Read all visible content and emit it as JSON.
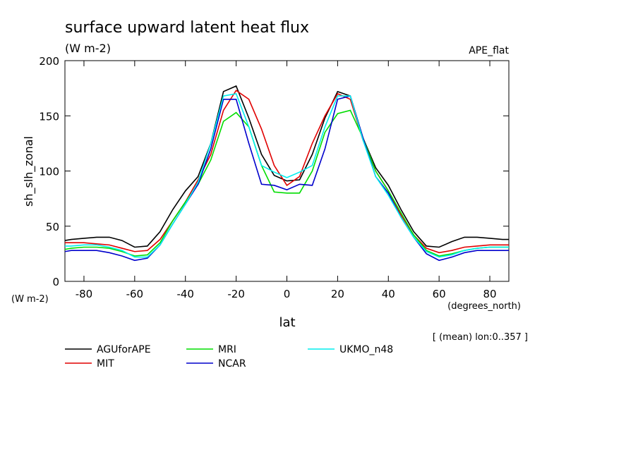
{
  "chart_data": {
    "type": "line",
    "title": "surface upward latent heat flux",
    "subtitle": "(W m-2)",
    "dataset_label": "APE_flat",
    "y_label": "sh_slh_zonal",
    "y_units": "(W m-2)",
    "x_label": "lat",
    "x_units": "(degrees_north)",
    "note": "[ (mean) lon:0..357 ]",
    "xlim": [
      -87.5,
      87.5
    ],
    "ylim": [
      0,
      200
    ],
    "xticks": [
      -80,
      -60,
      -40,
      -20,
      0,
      20,
      40,
      60,
      80
    ],
    "yticks": [
      0,
      50,
      100,
      150,
      200
    ],
    "x": [
      -87.5,
      -85,
      -80,
      -75,
      -70,
      -65,
      -60,
      -55,
      -50,
      -45,
      -40,
      -35,
      -30,
      -25,
      -20,
      -15,
      -10,
      -5,
      0,
      5,
      10,
      15,
      20,
      25,
      30,
      35,
      40,
      45,
      50,
      55,
      60,
      65,
      70,
      75,
      80,
      85,
      87.5
    ],
    "series": [
      {
        "name": "AGUforAPE",
        "color": "#000000",
        "values": [
          37,
          38,
          39,
          40,
          40,
          37,
          31,
          32,
          45,
          65,
          82,
          95,
          125,
          172,
          177,
          148,
          115,
          96,
          91,
          92,
          115,
          148,
          172,
          168,
          130,
          103,
          87,
          65,
          45,
          32,
          31,
          36,
          40,
          40,
          39,
          38,
          38
        ]
      },
      {
        "name": "MIT",
        "color": "#e00000",
        "values": [
          35,
          35,
          35,
          34,
          33,
          30,
          27,
          28,
          38,
          55,
          72,
          92,
          115,
          155,
          173,
          165,
          138,
          105,
          87,
          95,
          125,
          150,
          170,
          165,
          128,
          100,
          82,
          60,
          42,
          30,
          26,
          28,
          31,
          32,
          33,
          33,
          33
        ]
      },
      {
        "name": "MRI",
        "color": "#00dd00",
        "values": [
          29,
          30,
          31,
          31,
          30,
          27,
          23,
          24,
          35,
          55,
          72,
          88,
          110,
          145,
          153,
          140,
          105,
          81,
          80,
          80,
          100,
          135,
          152,
          155,
          130,
          100,
          82,
          62,
          42,
          28,
          23,
          25,
          28,
          30,
          31,
          31,
          31
        ]
      },
      {
        "name": "NCAR",
        "color": "#0000cc",
        "values": [
          27,
          28,
          28,
          28,
          26,
          23,
          19,
          21,
          33,
          52,
          70,
          88,
          120,
          165,
          165,
          125,
          88,
          87,
          83,
          88,
          87,
          120,
          165,
          168,
          130,
          95,
          80,
          58,
          40,
          25,
          19,
          22,
          26,
          28,
          28,
          28,
          28
        ]
      },
      {
        "name": "UKMO_n48",
        "color": "#00eeee",
        "values": [
          32,
          32,
          33,
          33,
          31,
          28,
          22,
          22,
          33,
          52,
          70,
          90,
          125,
          168,
          170,
          140,
          105,
          99,
          94,
          99,
          105,
          140,
          168,
          168,
          128,
          95,
          78,
          58,
          40,
          27,
          22,
          24,
          28,
          30,
          31,
          31,
          31
        ]
      }
    ]
  }
}
